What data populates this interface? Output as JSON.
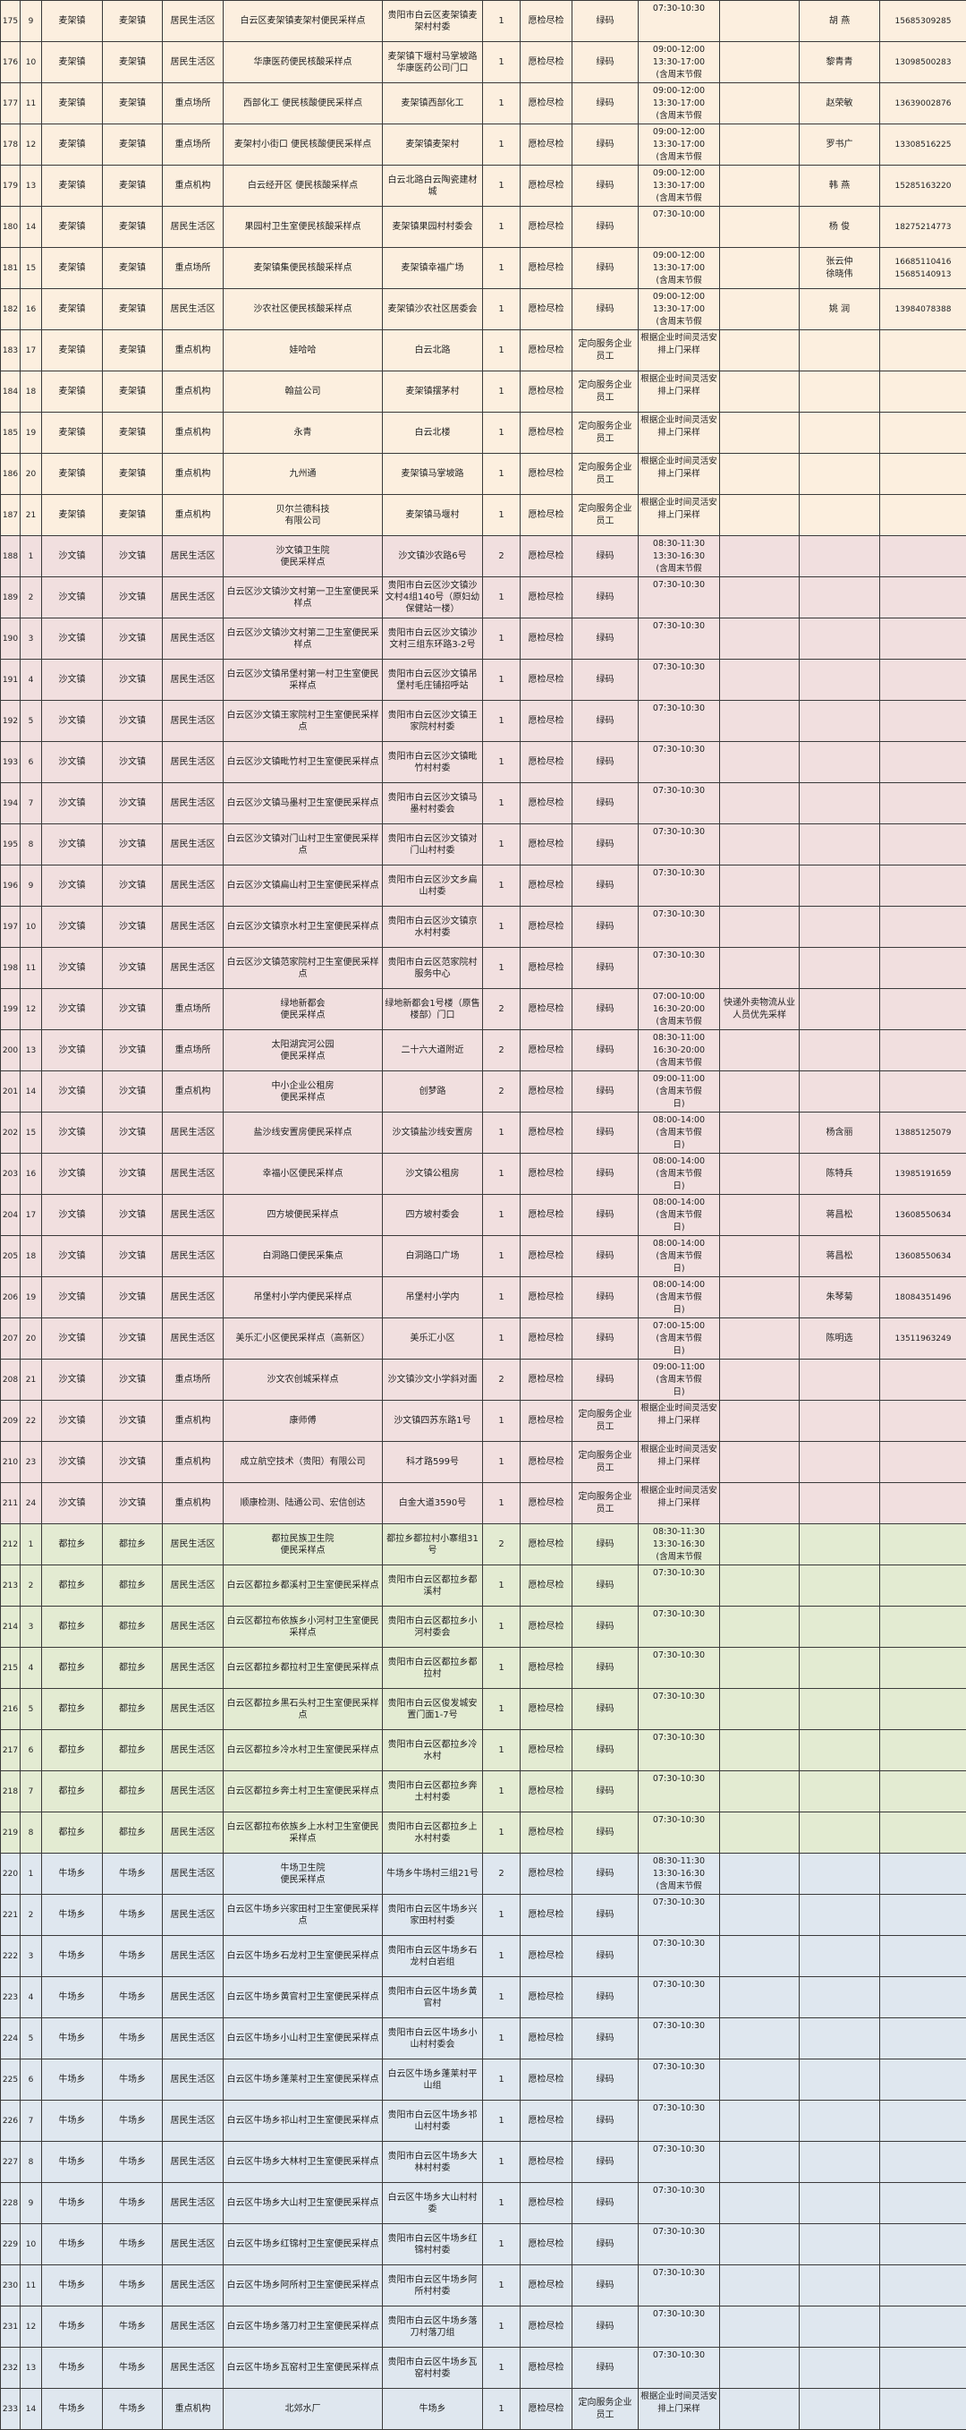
{
  "group_colors": {
    "麦架镇": "#fcefdf",
    "沙文镇": "#f1dfdf",
    "都拉乡": "#e3ebd2",
    "牛场乡": "#dfe7ef"
  },
  "rows": [
    [
      "175",
      "9",
      "麦架镇",
      "麦架镇",
      "居民生活区",
      "白云区麦架镇麦架村便民采样点",
      "贵阳市白云区麦架镇麦架村村委",
      "1",
      "愿检尽检",
      "绿码",
      "07:30-10:30",
      "",
      "胡 燕",
      "15685309285"
    ],
    [
      "176",
      "10",
      "麦架镇",
      "麦架镇",
      "居民生活区",
      "华康医药便民核酸采样点",
      "麦架镇下堰村马掌坡路华康医药公司门口",
      "1",
      "愿检尽检",
      "绿码",
      "09:00-12:00\n13:30-17:00\n(含周末节假",
      "",
      "黎青青",
      "13098500283"
    ],
    [
      "177",
      "11",
      "麦架镇",
      "麦架镇",
      "重点场所",
      "西部化工 便民核酸便民采样点",
      "麦架镇西部化工",
      "1",
      "愿检尽检",
      "绿码",
      "09:00-12:00\n13:30-17:00\n(含周末节假",
      "",
      "赵荣敏",
      "13639002876"
    ],
    [
      "178",
      "12",
      "麦架镇",
      "麦架镇",
      "重点场所",
      "麦架村小街口 便民核酸便民采样点",
      "麦架镇麦架村",
      "1",
      "愿检尽检",
      "绿码",
      "09:00-12:00\n13:30-17:00\n(含周末节假",
      "",
      "罗书广",
      "13308516225"
    ],
    [
      "179",
      "13",
      "麦架镇",
      "麦架镇",
      "重点机构",
      "白云经开区 便民核酸采样点",
      "白云北路白云陶瓷建材城",
      "1",
      "愿检尽检",
      "绿码",
      "09:00-12:00\n13:30-17:00\n(含周末节假",
      "",
      "韩 燕",
      "15285163220"
    ],
    [
      "180",
      "14",
      "麦架镇",
      "麦架镇",
      "居民生活区",
      "果园村卫生室便民核酸采样点",
      "麦架镇果园村村委会",
      "1",
      "愿检尽检",
      "绿码",
      "07:30-10:00",
      "",
      "杨 俊",
      "18275214773"
    ],
    [
      "181",
      "15",
      "麦架镇",
      "麦架镇",
      "重点场所",
      "麦架镇集便民核酸采样点",
      "麦架镇幸福广场",
      "1",
      "愿检尽检",
      "绿码",
      "09:00-12:00\n13:30-17:00\n(含周末节假",
      "",
      "张云仲\n徐晓伟",
      "16685110416\n15685140913"
    ],
    [
      "182",
      "16",
      "麦架镇",
      "麦架镇",
      "居民生活区",
      "沙农社区便民核酸采样点",
      "麦架镇沙农社区居委会",
      "1",
      "愿检尽检",
      "绿码",
      "09:00-12:00\n13:30-17:00\n(含周末节假",
      "",
      "姚 润",
      "13984078388"
    ],
    [
      "183",
      "17",
      "麦架镇",
      "麦架镇",
      "重点机构",
      "娃哈哈",
      "白云北路",
      "1",
      "愿检尽检",
      "定向服务企业员工",
      "根据企业时间灵活安排上门采样",
      "",
      "",
      ""
    ],
    [
      "184",
      "18",
      "麦架镇",
      "麦架镇",
      "重点机构",
      "翰益公司",
      "麦架镇摆茅村",
      "1",
      "愿检尽检",
      "定向服务企业员工",
      "根据企业时间灵活安排上门采样",
      "",
      "",
      ""
    ],
    [
      "185",
      "19",
      "麦架镇",
      "麦架镇",
      "重点机构",
      "永青",
      "白云北楼",
      "1",
      "愿检尽检",
      "定向服务企业员工",
      "根据企业时间灵活安排上门采样",
      "",
      "",
      ""
    ],
    [
      "186",
      "20",
      "麦架镇",
      "麦架镇",
      "重点机构",
      "九州通",
      "麦架镇马掌坡路",
      "1",
      "愿检尽检",
      "定向服务企业员工",
      "根据企业时间灵活安排上门采样",
      "",
      "",
      ""
    ],
    [
      "187",
      "21",
      "麦架镇",
      "麦架镇",
      "重点机构",
      "贝尔兰德科技\n有限公司",
      "麦架镇马堰村",
      "1",
      "愿检尽检",
      "定向服务企业员工",
      "根据企业时间灵活安排上门采样",
      "",
      "",
      ""
    ],
    [
      "188",
      "1",
      "沙文镇",
      "沙文镇",
      "居民生活区",
      "沙文镇卫生院\n便民采样点",
      "沙文镇沙农路6号",
      "2",
      "愿检尽检",
      "绿码",
      "08:30-11:30\n13:30-16:30\n(含周末节假",
      "",
      "",
      ""
    ],
    [
      "189",
      "2",
      "沙文镇",
      "沙文镇",
      "居民生活区",
      "白云区沙文镇沙文村第一卫生室便民采样点",
      "贵阳市白云区沙文镇沙文村4组140号（原妇幼保健站一楼）",
      "1",
      "愿检尽检",
      "绿码",
      "07:30-10:30",
      "",
      "",
      ""
    ],
    [
      "190",
      "3",
      "沙文镇",
      "沙文镇",
      "居民生活区",
      "白云区沙文镇沙文村第二卫生室便民采样点",
      "贵阳市白云区沙文镇沙文村三组东环路3-2号",
      "1",
      "愿检尽检",
      "绿码",
      "07:30-10:30",
      "",
      "",
      ""
    ],
    [
      "191",
      "4",
      "沙文镇",
      "沙文镇",
      "居民生活区",
      "白云区沙文镇吊堡村第一村卫生室便民采样点",
      "贵阳市白云区沙文镇吊堡村毛庄铺招呼站",
      "1",
      "愿检尽检",
      "绿码",
      "07:30-10:30",
      "",
      "",
      ""
    ],
    [
      "192",
      "5",
      "沙文镇",
      "沙文镇",
      "居民生活区",
      "白云区沙文镇王家院村卫生室便民采样点",
      "贵阳市白云区沙文镇王家院村村委",
      "1",
      "愿检尽检",
      "绿码",
      "07:30-10:30",
      "",
      "",
      ""
    ],
    [
      "193",
      "6",
      "沙文镇",
      "沙文镇",
      "居民生活区",
      "白云区沙文镇毗竹村卫生室便民采样点",
      "贵阳市白云区沙文镇毗竹村村委",
      "1",
      "愿检尽检",
      "绿码",
      "07:30-10:30",
      "",
      "",
      ""
    ],
    [
      "194",
      "7",
      "沙文镇",
      "沙文镇",
      "居民生活区",
      "白云区沙文镇马墨村卫生室便民采样点",
      "贵阳市白云区沙文镇马墨村村委会",
      "1",
      "愿检尽检",
      "绿码",
      "07:30-10:30",
      "",
      "",
      ""
    ],
    [
      "195",
      "8",
      "沙文镇",
      "沙文镇",
      "居民生活区",
      "白云区沙文镇对门山村卫生室便民采样点",
      "贵阳市白云区沙文镇对门山村村委",
      "1",
      "愿检尽检",
      "绿码",
      "07:30-10:30",
      "",
      "",
      ""
    ],
    [
      "196",
      "9",
      "沙文镇",
      "沙文镇",
      "居民生活区",
      "白云区沙文镇扁山村卫生室便民采样点",
      "贵阳市白云区沙文乡扁山村委",
      "1",
      "愿检尽检",
      "绿码",
      "07:30-10:30",
      "",
      "",
      ""
    ],
    [
      "197",
      "10",
      "沙文镇",
      "沙文镇",
      "居民生活区",
      "白云区沙文镇京水村卫生室便民采样点",
      "贵阳市白云区沙文镇京水村村委",
      "1",
      "愿检尽检",
      "绿码",
      "07:30-10:30",
      "",
      "",
      ""
    ],
    [
      "198",
      "11",
      "沙文镇",
      "沙文镇",
      "居民生活区",
      "白云区沙文镇范家院村卫生室便民采样点",
      "贵阳市白云区范家院村服务中心",
      "1",
      "愿检尽检",
      "绿码",
      "07:30-10:30",
      "",
      "",
      ""
    ],
    [
      "199",
      "12",
      "沙文镇",
      "沙文镇",
      "重点场所",
      "绿地新都会\n便民采样点",
      "绿地新都会1号楼（原售楼部）门口",
      "2",
      "愿检尽检",
      "绿码",
      "07:00-10:00\n16:30-20:00\n(含周末节假",
      "快递外卖物流从业人员优先采样",
      "",
      ""
    ],
    [
      "200",
      "13",
      "沙文镇",
      "沙文镇",
      "重点场所",
      "太阳湖宾河公园\n便民采样点",
      "二十六大道附近",
      "2",
      "愿检尽检",
      "绿码",
      "08:30-11:00\n16:30-20:00\n(含周末节假",
      "",
      "",
      ""
    ],
    [
      "201",
      "14",
      "沙文镇",
      "沙文镇",
      "重点机构",
      "中小企业公租房\n便民采样点",
      "创梦路",
      "2",
      "愿检尽检",
      "绿码",
      "09:00-11:00\n(含周末节假\n日)",
      "",
      "",
      ""
    ],
    [
      "202",
      "15",
      "沙文镇",
      "沙文镇",
      "居民生活区",
      "盐沙线安置房便民采样点",
      "沙文镇盐沙线安置房",
      "1",
      "愿检尽检",
      "绿码",
      "08:00-14:00\n(含周末节假\n日)",
      "",
      "杨含丽",
      "13885125079"
    ],
    [
      "203",
      "16",
      "沙文镇",
      "沙文镇",
      "居民生活区",
      "幸福小区便民采样点",
      "沙文镇公租房",
      "1",
      "愿检尽检",
      "绿码",
      "08:00-14:00\n(含周末节假\n日)",
      "",
      "陈特兵",
      "13985191659"
    ],
    [
      "204",
      "17",
      "沙文镇",
      "沙文镇",
      "居民生活区",
      "四方坡便民采样点",
      "四方坡村委会",
      "1",
      "愿检尽检",
      "绿码",
      "08:00-14:00\n(含周末节假\n日)",
      "",
      "蒋昌松",
      "13608550634"
    ],
    [
      "205",
      "18",
      "沙文镇",
      "沙文镇",
      "居民生活区",
      "白洞路口便民采集点",
      "白洞路口广场",
      "1",
      "愿检尽检",
      "绿码",
      "08:00-14:00\n(含周末节假\n日)",
      "",
      "蒋昌松",
      "13608550634"
    ],
    [
      "206",
      "19",
      "沙文镇",
      "沙文镇",
      "居民生活区",
      "吊堡村小学内便民采样点",
      "吊堡村小学内",
      "1",
      "愿检尽检",
      "绿码",
      "08:00-14:00\n(含周末节假\n日)",
      "",
      "朱琴菊",
      "18084351496"
    ],
    [
      "207",
      "20",
      "沙文镇",
      "沙文镇",
      "居民生活区",
      "美乐汇小区便民采样点（高新区）",
      "美乐汇小区",
      "1",
      "愿检尽检",
      "绿码",
      "07:00-15:00\n(含周末节假\n日)",
      "",
      "陈明选",
      "13511963249"
    ],
    [
      "208",
      "21",
      "沙文镇",
      "沙文镇",
      "重点场所",
      "沙文农创城采样点",
      "沙文镇沙文小学斜对面",
      "2",
      "愿检尽检",
      "绿码",
      "09:00-11:00\n(含周末节假\n日)",
      "",
      "",
      ""
    ],
    [
      "209",
      "22",
      "沙文镇",
      "沙文镇",
      "重点机构",
      "康师傅",
      "沙文镇四苏东路1号",
      "1",
      "愿检尽检",
      "定向服务企业员工",
      "根据企业时间灵活安排上门采样",
      "",
      "",
      ""
    ],
    [
      "210",
      "23",
      "沙文镇",
      "沙文镇",
      "重点机构",
      "成立航空技术（贵阳）有限公司",
      "科才路599号",
      "1",
      "愿检尽检",
      "定向服务企业员工",
      "根据企业时间灵活安排上门采样",
      "",
      "",
      ""
    ],
    [
      "211",
      "24",
      "沙文镇",
      "沙文镇",
      "重点机构",
      "顺康检测、陆通公司、宏信创达",
      "白金大道3590号",
      "1",
      "愿检尽检",
      "定向服务企业员工",
      "根据企业时间灵活安排上门采样",
      "",
      "",
      ""
    ],
    [
      "212",
      "1",
      "都拉乡",
      "都拉乡",
      "居民生活区",
      "都拉民族卫生院\n便民采样点",
      "都拉乡都拉村小寨组31号",
      "2",
      "愿检尽检",
      "绿码",
      "08:30-11:30\n13:30-16:30\n(含周末节假",
      "",
      "",
      ""
    ],
    [
      "213",
      "2",
      "都拉乡",
      "都拉乡",
      "居民生活区",
      "白云区都拉乡都溪村卫生室便民采样点",
      "贵阳市白云区都拉乡都溪村",
      "1",
      "愿检尽检",
      "绿码",
      "07:30-10:30",
      "",
      "",
      ""
    ],
    [
      "214",
      "3",
      "都拉乡",
      "都拉乡",
      "居民生活区",
      "白云区都拉布依族乡小河村卫生室便民采样点",
      "贵阳市白云区都拉乡小河村委会",
      "1",
      "愿检尽检",
      "绿码",
      "07:30-10:30",
      "",
      "",
      ""
    ],
    [
      "215",
      "4",
      "都拉乡",
      "都拉乡",
      "居民生活区",
      "白云区都拉乡都拉村卫生室便民采样点",
      "贵阳市白云区都拉乡都拉村",
      "1",
      "愿检尽检",
      "绿码",
      "07:30-10:30",
      "",
      "",
      ""
    ],
    [
      "216",
      "5",
      "都拉乡",
      "都拉乡",
      "居民生活区",
      "白云区都拉乡黑石头村卫生室便民采样点",
      "贵阳市白云区俊发城安置门面1-7号",
      "1",
      "愿检尽检",
      "绿码",
      "07:30-10:30",
      "",
      "",
      ""
    ],
    [
      "217",
      "6",
      "都拉乡",
      "都拉乡",
      "居民生活区",
      "白云区都拉乡冷水村卫生室便民采样点",
      "贵阳市白云区都拉乡冷水村",
      "1",
      "愿检尽检",
      "绿码",
      "07:30-10:30",
      "",
      "",
      ""
    ],
    [
      "218",
      "7",
      "都拉乡",
      "都拉乡",
      "居民生活区",
      "白云区都拉乡奔土村卫生室便民采样点",
      "贵阳市白云区都拉乡奔土村村委",
      "1",
      "愿检尽检",
      "绿码",
      "07:30-10:30",
      "",
      "",
      ""
    ],
    [
      "219",
      "8",
      "都拉乡",
      "都拉乡",
      "居民生活区",
      "白云区都拉布依族乡上水村卫生室便民采样点",
      "贵阳市白云区都拉乡上水村村委",
      "1",
      "愿检尽检",
      "绿码",
      "07:30-10:30",
      "",
      "",
      ""
    ],
    [
      "220",
      "1",
      "牛场乡",
      "牛场乡",
      "居民生活区",
      "牛场卫生院\n便民采样点",
      "牛场乡牛场村三组21号",
      "2",
      "愿检尽检",
      "绿码",
      "08:30-11:30\n13:30-16:30\n(含周末节假",
      "",
      "",
      ""
    ],
    [
      "221",
      "2",
      "牛场乡",
      "牛场乡",
      "居民生活区",
      "白云区牛场乡兴家田村卫生室便民采样点",
      "贵阳市白云区牛场乡兴家田村村委",
      "1",
      "愿检尽检",
      "绿码",
      "07:30-10:30",
      "",
      "",
      ""
    ],
    [
      "222",
      "3",
      "牛场乡",
      "牛场乡",
      "居民生活区",
      "白云区牛场乡石龙村卫生室便民采样点",
      "贵阳市白云区牛场乡石龙村白岩组",
      "1",
      "愿检尽检",
      "绿码",
      "07:30-10:30",
      "",
      "",
      ""
    ],
    [
      "223",
      "4",
      "牛场乡",
      "牛场乡",
      "居民生活区",
      "白云区牛场乡黄官村卫生室便民采样点",
      "贵阳市白云区牛场乡黄官村",
      "1",
      "愿检尽检",
      "绿码",
      "07:30-10:30",
      "",
      "",
      ""
    ],
    [
      "224",
      "5",
      "牛场乡",
      "牛场乡",
      "居民生活区",
      "白云区牛场乡小山村卫生室便民采样点",
      "贵阳市白云区牛场乡小山村村委会",
      "1",
      "愿检尽检",
      "绿码",
      "07:30-10:30",
      "",
      "",
      ""
    ],
    [
      "225",
      "6",
      "牛场乡",
      "牛场乡",
      "居民生活区",
      "白云区牛场乡蓬莱村卫生室便民采样点",
      "白云区牛场乡蓬莱村平山组",
      "1",
      "愿检尽检",
      "绿码",
      "07:30-10:30",
      "",
      "",
      ""
    ],
    [
      "226",
      "7",
      "牛场乡",
      "牛场乡",
      "居民生活区",
      "白云区牛场乡祁山村卫生室便民采样点",
      "贵阳市白云区牛场乡祁山村村委",
      "1",
      "愿检尽检",
      "绿码",
      "07:30-10:30",
      "",
      "",
      ""
    ],
    [
      "227",
      "8",
      "牛场乡",
      "牛场乡",
      "居民生活区",
      "白云区牛场乡大林村卫生室便民采样点",
      "贵阳市白云区牛场乡大林村村委",
      "1",
      "愿检尽检",
      "绿码",
      "07:30-10:30",
      "",
      "",
      ""
    ],
    [
      "228",
      "9",
      "牛场乡",
      "牛场乡",
      "居民生活区",
      "白云区牛场乡大山村卫生室便民采样点",
      "白云区牛场乡大山村村委",
      "1",
      "愿检尽检",
      "绿码",
      "07:30-10:30",
      "",
      "",
      ""
    ],
    [
      "229",
      "10",
      "牛场乡",
      "牛场乡",
      "居民生活区",
      "白云区牛场乡红锦村卫生室便民采样点",
      "贵阳市白云区牛场乡红锦村村委",
      "1",
      "愿检尽检",
      "绿码",
      "07:30-10:30",
      "",
      "",
      ""
    ],
    [
      "230",
      "11",
      "牛场乡",
      "牛场乡",
      "居民生活区",
      "白云区牛场乡阿所村卫生室便民采样点",
      "贵阳市白云区牛场乡阿所村村委",
      "1",
      "愿检尽检",
      "绿码",
      "07:30-10:30",
      "",
      "",
      ""
    ],
    [
      "231",
      "12",
      "牛场乡",
      "牛场乡",
      "居民生活区",
      "白云区牛场乡落刀村卫生室便民采样点",
      "贵阳市白云区牛场乡落刀村落刀组",
      "1",
      "愿检尽检",
      "绿码",
      "07:30-10:30",
      "",
      "",
      ""
    ],
    [
      "232",
      "13",
      "牛场乡",
      "牛场乡",
      "居民生活区",
      "白云区牛场乡瓦窑村卫生室便民采样点",
      "贵阳市白云区牛场乡瓦窑村村委",
      "1",
      "愿检尽检",
      "绿码",
      "07:30-10:30",
      "",
      "",
      ""
    ],
    [
      "233",
      "14",
      "牛场乡",
      "牛场乡",
      "重点机构",
      "北郊水厂",
      "牛场乡",
      "1",
      "愿检尽检",
      "定向服务企业员工",
      "根据企业时间灵活安排上门采样",
      "",
      "",
      ""
    ]
  ]
}
